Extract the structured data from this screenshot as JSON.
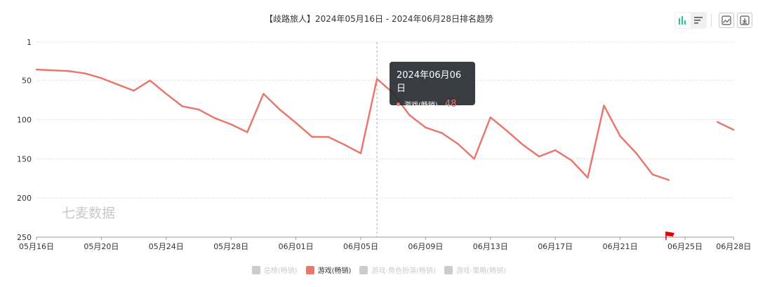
{
  "toolbar": {
    "icons": [
      "bar-line-toggle-icon",
      "list-icon",
      "chart-image-icon",
      "download-icon"
    ],
    "accent": "#2bbf9a"
  },
  "tooltip": {
    "date": "2024年06月06日",
    "series_name": "游戏(畅销)",
    "value": "48",
    "color": "#e8786e"
  },
  "watermark": "七麦数据",
  "chart_data": {
    "type": "line",
    "title": "【歧路旅人】2024年05月16日 - 2024年06月28日排名趋势",
    "y_inverted": true,
    "ylim": [
      1,
      250
    ],
    "y_ticks": [
      "1",
      "50",
      "100",
      "150",
      "200",
      "250"
    ],
    "y_tick_values": [
      1,
      50,
      100,
      150,
      200,
      250
    ],
    "x_ticks": [
      "05月16日",
      "05月20日",
      "05月24日",
      "05月28日",
      "06月01日",
      "06月05日",
      "06月09日",
      "06月13日",
      "06月17日",
      "06月21日",
      "06月25日",
      "06月28日"
    ],
    "x_tick_days": [
      0,
      4,
      8,
      12,
      16,
      20,
      24,
      28,
      32,
      36,
      40,
      43
    ],
    "grid": true,
    "crosshair_day": 21,
    "marker_flag_day": 39,
    "legend_position": "bottom",
    "series": [
      {
        "name": "总榜(畅销)",
        "active": false,
        "color": "#cccccc",
        "values": []
      },
      {
        "name": "游戏(畅销)",
        "active": true,
        "color": "#e8786e",
        "points": [
          [
            0,
            36
          ],
          [
            1,
            37
          ],
          [
            2,
            38
          ],
          [
            3,
            41
          ],
          [
            4,
            47
          ],
          [
            5,
            55
          ],
          [
            6,
            63
          ],
          [
            7,
            50
          ],
          [
            8,
            67
          ],
          [
            9,
            83
          ],
          [
            10,
            87
          ],
          [
            11,
            98
          ],
          [
            12,
            106
          ],
          [
            13,
            116
          ],
          [
            14,
            67
          ],
          [
            15,
            87
          ],
          [
            16,
            104
          ],
          [
            17,
            122
          ],
          [
            18,
            122
          ],
          [
            19,
            132
          ],
          [
            20,
            143
          ],
          [
            21,
            48
          ],
          [
            22,
            66
          ],
          [
            23,
            94
          ],
          [
            24,
            110
          ],
          [
            25,
            117
          ],
          [
            26,
            131
          ],
          [
            27,
            150
          ],
          [
            28,
            97
          ],
          [
            29,
            114
          ],
          [
            30,
            132
          ],
          [
            31,
            147
          ],
          [
            32,
            139
          ],
          [
            33,
            152
          ],
          [
            34,
            174
          ],
          [
            35,
            82
          ],
          [
            36,
            121
          ],
          [
            37,
            143
          ],
          [
            38,
            170
          ],
          [
            39,
            177
          ],
          [
            42,
            103
          ],
          [
            43,
            113
          ]
        ]
      },
      {
        "name": "游戏-角色扮演(畅销)",
        "active": false,
        "color": "#cccccc",
        "values": []
      },
      {
        "name": "游戏-策略(畅销)",
        "active": false,
        "color": "#cccccc",
        "values": []
      }
    ]
  }
}
